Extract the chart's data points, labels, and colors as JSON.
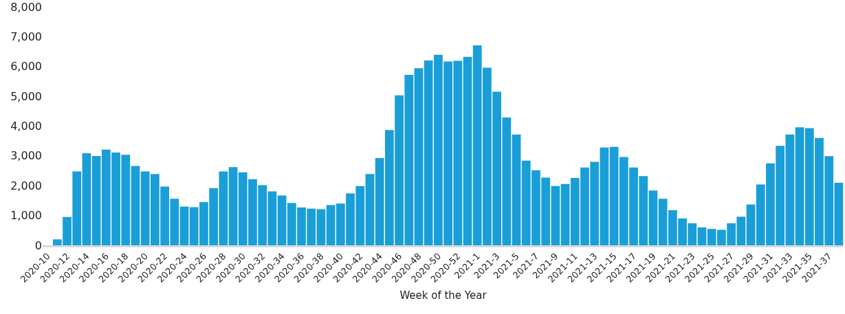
{
  "chart_data": {
    "type": "bar",
    "xlabel": "Week of the Year",
    "categories": [
      "2020-10",
      null,
      "2020-12",
      null,
      "2020-14",
      null,
      "2020-16",
      null,
      "2020-18",
      null,
      "2020-20",
      null,
      "2020-22",
      null,
      "2020-24",
      null,
      "2020-26",
      null,
      "2020-28",
      null,
      "2020-30",
      null,
      "2020-32",
      null,
      "2020-34",
      null,
      "2020-36",
      null,
      "2020-38",
      null,
      "2020-40",
      null,
      "2020-42",
      null,
      "2020-44",
      null,
      "2020-46",
      null,
      "2020-48",
      null,
      "2020-50",
      null,
      "2020-52",
      null,
      "2021-1",
      null,
      "2021-3",
      null,
      "2021-5",
      null,
      "2021-7",
      null,
      "2021-9",
      null,
      "2021-11",
      null,
      "2021-13",
      null,
      "2021-15",
      null,
      "2021-17",
      null,
      "2021-19",
      null,
      "2021-21",
      null,
      "2021-23",
      null,
      "2021-25",
      null,
      "2021-27",
      null,
      "2021-29",
      null,
      "2021-31",
      null,
      "2021-33",
      null,
      "2021-35",
      null,
      "2021-37",
      null
    ],
    "values": [
      0,
      200,
      950,
      2480,
      3090,
      3000,
      3210,
      3110,
      3040,
      2660,
      2480,
      2390,
      1970,
      1560,
      1300,
      1280,
      1450,
      1920,
      2480,
      2620,
      2450,
      2220,
      2020,
      1810,
      1670,
      1420,
      1270,
      1230,
      1210,
      1350,
      1400,
      1740,
      1990,
      2390,
      2930,
      3870,
      5030,
      5720,
      5940,
      6200,
      6390,
      6170,
      6190,
      6320,
      6710,
      5960,
      5150,
      4290,
      3720,
      2840,
      2520,
      2270,
      1990,
      2060,
      2260,
      2610,
      2800,
      3280,
      3300,
      2960,
      2610,
      2320,
      1840,
      1560,
      1180,
      900,
      740,
      600,
      550,
      520,
      740,
      960,
      1370,
      2040,
      2750,
      3340,
      3720,
      3960,
      3930,
      3600,
      2990,
      2100
    ],
    "color": "#1a9ed8",
    "ylim": [
      0,
      8000
    ],
    "yticks": [
      {
        "value": 0,
        "label": "0"
      },
      {
        "value": 1000,
        "label": "1,000"
      },
      {
        "value": 2000,
        "label": "2,000"
      },
      {
        "value": 3000,
        "label": "3,000"
      },
      {
        "value": 4000,
        "label": "4,000"
      },
      {
        "value": 5000,
        "label": "5,000"
      },
      {
        "value": 6000,
        "label": "6,000"
      },
      {
        "value": 7000,
        "label": "7,000"
      },
      {
        "value": 8000,
        "label": "8,000"
      }
    ],
    "grid": false
  }
}
